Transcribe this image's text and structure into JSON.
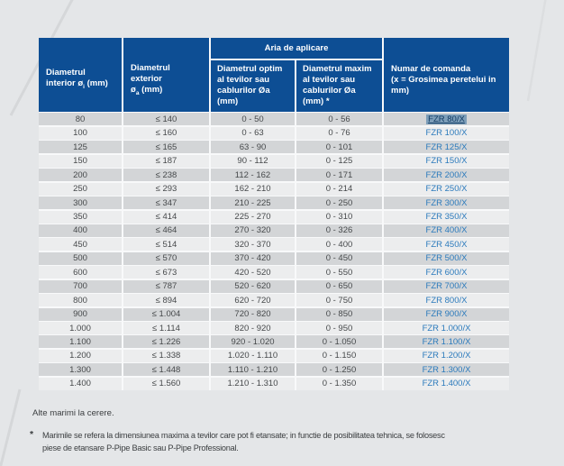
{
  "colors": {
    "page_background": "#e4e6e8",
    "header_navy": "#0d4e94",
    "row_dark": "#d3d5d7",
    "row_light": "#ecedee",
    "order_code_blue": "#2b7abc",
    "highlight_background": "#7d9eb9",
    "highlight_text": "#113b63",
    "body_text": "#46494b"
  },
  "table": {
    "header": {
      "col1": {
        "line1": "Diametrul",
        "line2_pre": "interior ø",
        "sub": "i",
        "line2_post": " (mm)"
      },
      "col2": {
        "line1": "Diametrul",
        "line2": "exterior",
        "line3_pre": "ø",
        "sub": "a",
        "line3_post": " (mm)"
      },
      "aria_span": "Aria de aplicare",
      "col3": {
        "line1": "Diametrul optim",
        "line2": "al tevilor sau",
        "line3": "cablurilor Øa",
        "line4": "(mm)"
      },
      "col4": {
        "line1": "Diametrul maxim",
        "line2": "al tevilor sau",
        "line3": "cablurilor Øa",
        "line4": "(mm) *"
      },
      "col5": {
        "line1": "Numar de comanda",
        "line2": "(x = Grosimea peretelui in",
        "line3": "mm)"
      }
    },
    "rows": [
      {
        "cells": [
          "80",
          "≤ 140",
          "0 - 50",
          "0 - 56",
          "FZR 80/X"
        ],
        "highlight": true
      },
      {
        "cells": [
          "100",
          "≤ 160",
          "0 - 63",
          "0 - 76",
          "FZR 100/X"
        ],
        "highlight": false
      },
      {
        "cells": [
          "125",
          "≤ 165",
          "63 - 90",
          "0 - 101",
          "FZR 125/X"
        ],
        "highlight": false
      },
      {
        "cells": [
          "150",
          "≤ 187",
          "90 - 112",
          "0 - 125",
          "FZR 150/X"
        ],
        "highlight": false
      },
      {
        "cells": [
          "200",
          "≤ 238",
          "112 - 162",
          "0 - 171",
          "FZR 200/X"
        ],
        "highlight": false
      },
      {
        "cells": [
          "250",
          "≤ 293",
          "162 - 210",
          "0 - 214",
          "FZR 250/X"
        ],
        "highlight": false
      },
      {
        "cells": [
          "300",
          "≤ 347",
          "210 - 225",
          "0 - 250",
          "FZR 300/X"
        ],
        "highlight": false
      },
      {
        "cells": [
          "350",
          "≤ 414",
          "225 - 270",
          "0 - 310",
          "FZR 350/X"
        ],
        "highlight": false
      },
      {
        "cells": [
          "400",
          "≤ 464",
          "270 - 320",
          "0 - 326",
          "FZR 400/X"
        ],
        "highlight": false
      },
      {
        "cells": [
          "450",
          "≤ 514",
          "320 - 370",
          "0 - 400",
          "FZR 450/X"
        ],
        "highlight": false
      },
      {
        "cells": [
          "500",
          "≤ 570",
          "370 - 420",
          "0 - 450",
          "FZR 500/X"
        ],
        "highlight": false
      },
      {
        "cells": [
          "600",
          "≤ 673",
          "420 - 520",
          "0 - 550",
          "FZR 600/X"
        ],
        "highlight": false
      },
      {
        "cells": [
          "700",
          "≤ 787",
          "520 - 620",
          "0 - 650",
          "FZR 700/X"
        ],
        "highlight": false
      },
      {
        "cells": [
          "800",
          "≤ 894",
          "620 - 720",
          "0 - 750",
          "FZR 800/X"
        ],
        "highlight": false
      },
      {
        "cells": [
          "900",
          "≤ 1.004",
          "720 - 820",
          "0 - 850",
          "FZR 900/X"
        ],
        "highlight": false
      },
      {
        "cells": [
          "1.000",
          "≤ 1.114",
          "820 - 920",
          "0 - 950",
          "FZR 1.000/X"
        ],
        "highlight": false
      },
      {
        "cells": [
          "1.100",
          "≤ 1.226",
          "920 - 1.020",
          "0 - 1.050",
          "FZR 1.100/X"
        ],
        "highlight": false
      },
      {
        "cells": [
          "1.200",
          "≤ 1.338",
          "1.020 - 1.110",
          "0 - 1.150",
          "FZR 1.200/X"
        ],
        "highlight": false
      },
      {
        "cells": [
          "1.300",
          "≤ 1.448",
          "1.110 - 1.210",
          "0 - 1.250",
          "FZR 1.300/X"
        ],
        "highlight": false
      },
      {
        "cells": [
          "1.400",
          "≤ 1.560",
          "1.210 - 1.310",
          "0 - 1.350",
          "FZR 1.400/X"
        ],
        "highlight": false
      }
    ]
  },
  "notes": {
    "alte_marimi": "Alte marimi la cerere.",
    "footnote_mark": "*",
    "footnote_line1": "Marimile se refera la dimensiunea maxima a tevilor care pot fi etansate; in functie de posibilitatea tehnica, se folosesc",
    "footnote_line2": "piese de etansare P-Pipe Basic sau P-Pipe Professional."
  }
}
